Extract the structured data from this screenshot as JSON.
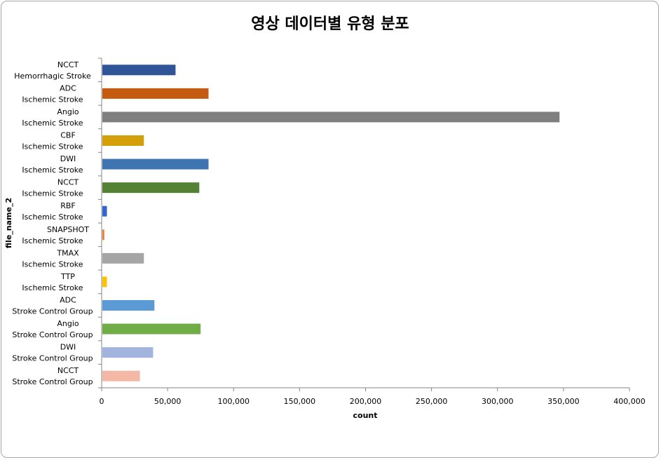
{
  "chart_data": {
    "type": "bar",
    "orientation": "horizontal",
    "title": "영상 데이터별 유형 분포",
    "xlabel": "count",
    "ylabel": "file_name_2",
    "xlim": [
      0,
      400000
    ],
    "x_ticks": [
      "0",
      "50,000",
      "100,000",
      "150,000",
      "200,000",
      "250,000",
      "300,000",
      "350,000",
      "400,000"
    ],
    "grid": false,
    "categories": [
      [
        "NCCT",
        "Hemorrhagic Stroke"
      ],
      [
        "ADC",
        "Ischemic Stroke"
      ],
      [
        "Angio",
        "Ischemic Stroke"
      ],
      [
        "CBF",
        "Ischemic Stroke"
      ],
      [
        "DWI",
        "Ischemic Stroke"
      ],
      [
        "NCCT",
        "Ischemic Stroke"
      ],
      [
        "RBF",
        "Ischemic Stroke"
      ],
      [
        "SNAPSHOT",
        "Ischemic Stroke"
      ],
      [
        "TMAX",
        "Ischemic Stroke"
      ],
      [
        "TTP",
        "Ischemic Stroke"
      ],
      [
        "ADC",
        "Stroke Control Group"
      ],
      [
        "Angio",
        "Stroke Control Group"
      ],
      [
        "DWI",
        "Stroke Control Group"
      ],
      [
        "NCCT",
        "Stroke Control Group"
      ]
    ],
    "values": [
      56000,
      81000,
      347000,
      32000,
      81000,
      74000,
      4000,
      2000,
      32000,
      4000,
      40000,
      75000,
      39000,
      29000
    ],
    "colors": [
      "#2f5597",
      "#c55a11",
      "#7f7f7f",
      "#d4a009",
      "#3e75b0",
      "#548235",
      "#3366cc",
      "#ed7d31",
      "#a5a5a5",
      "#ffc000",
      "#5b9bd5",
      "#70ad47",
      "#a2b4dd",
      "#f4b9a6"
    ]
  }
}
